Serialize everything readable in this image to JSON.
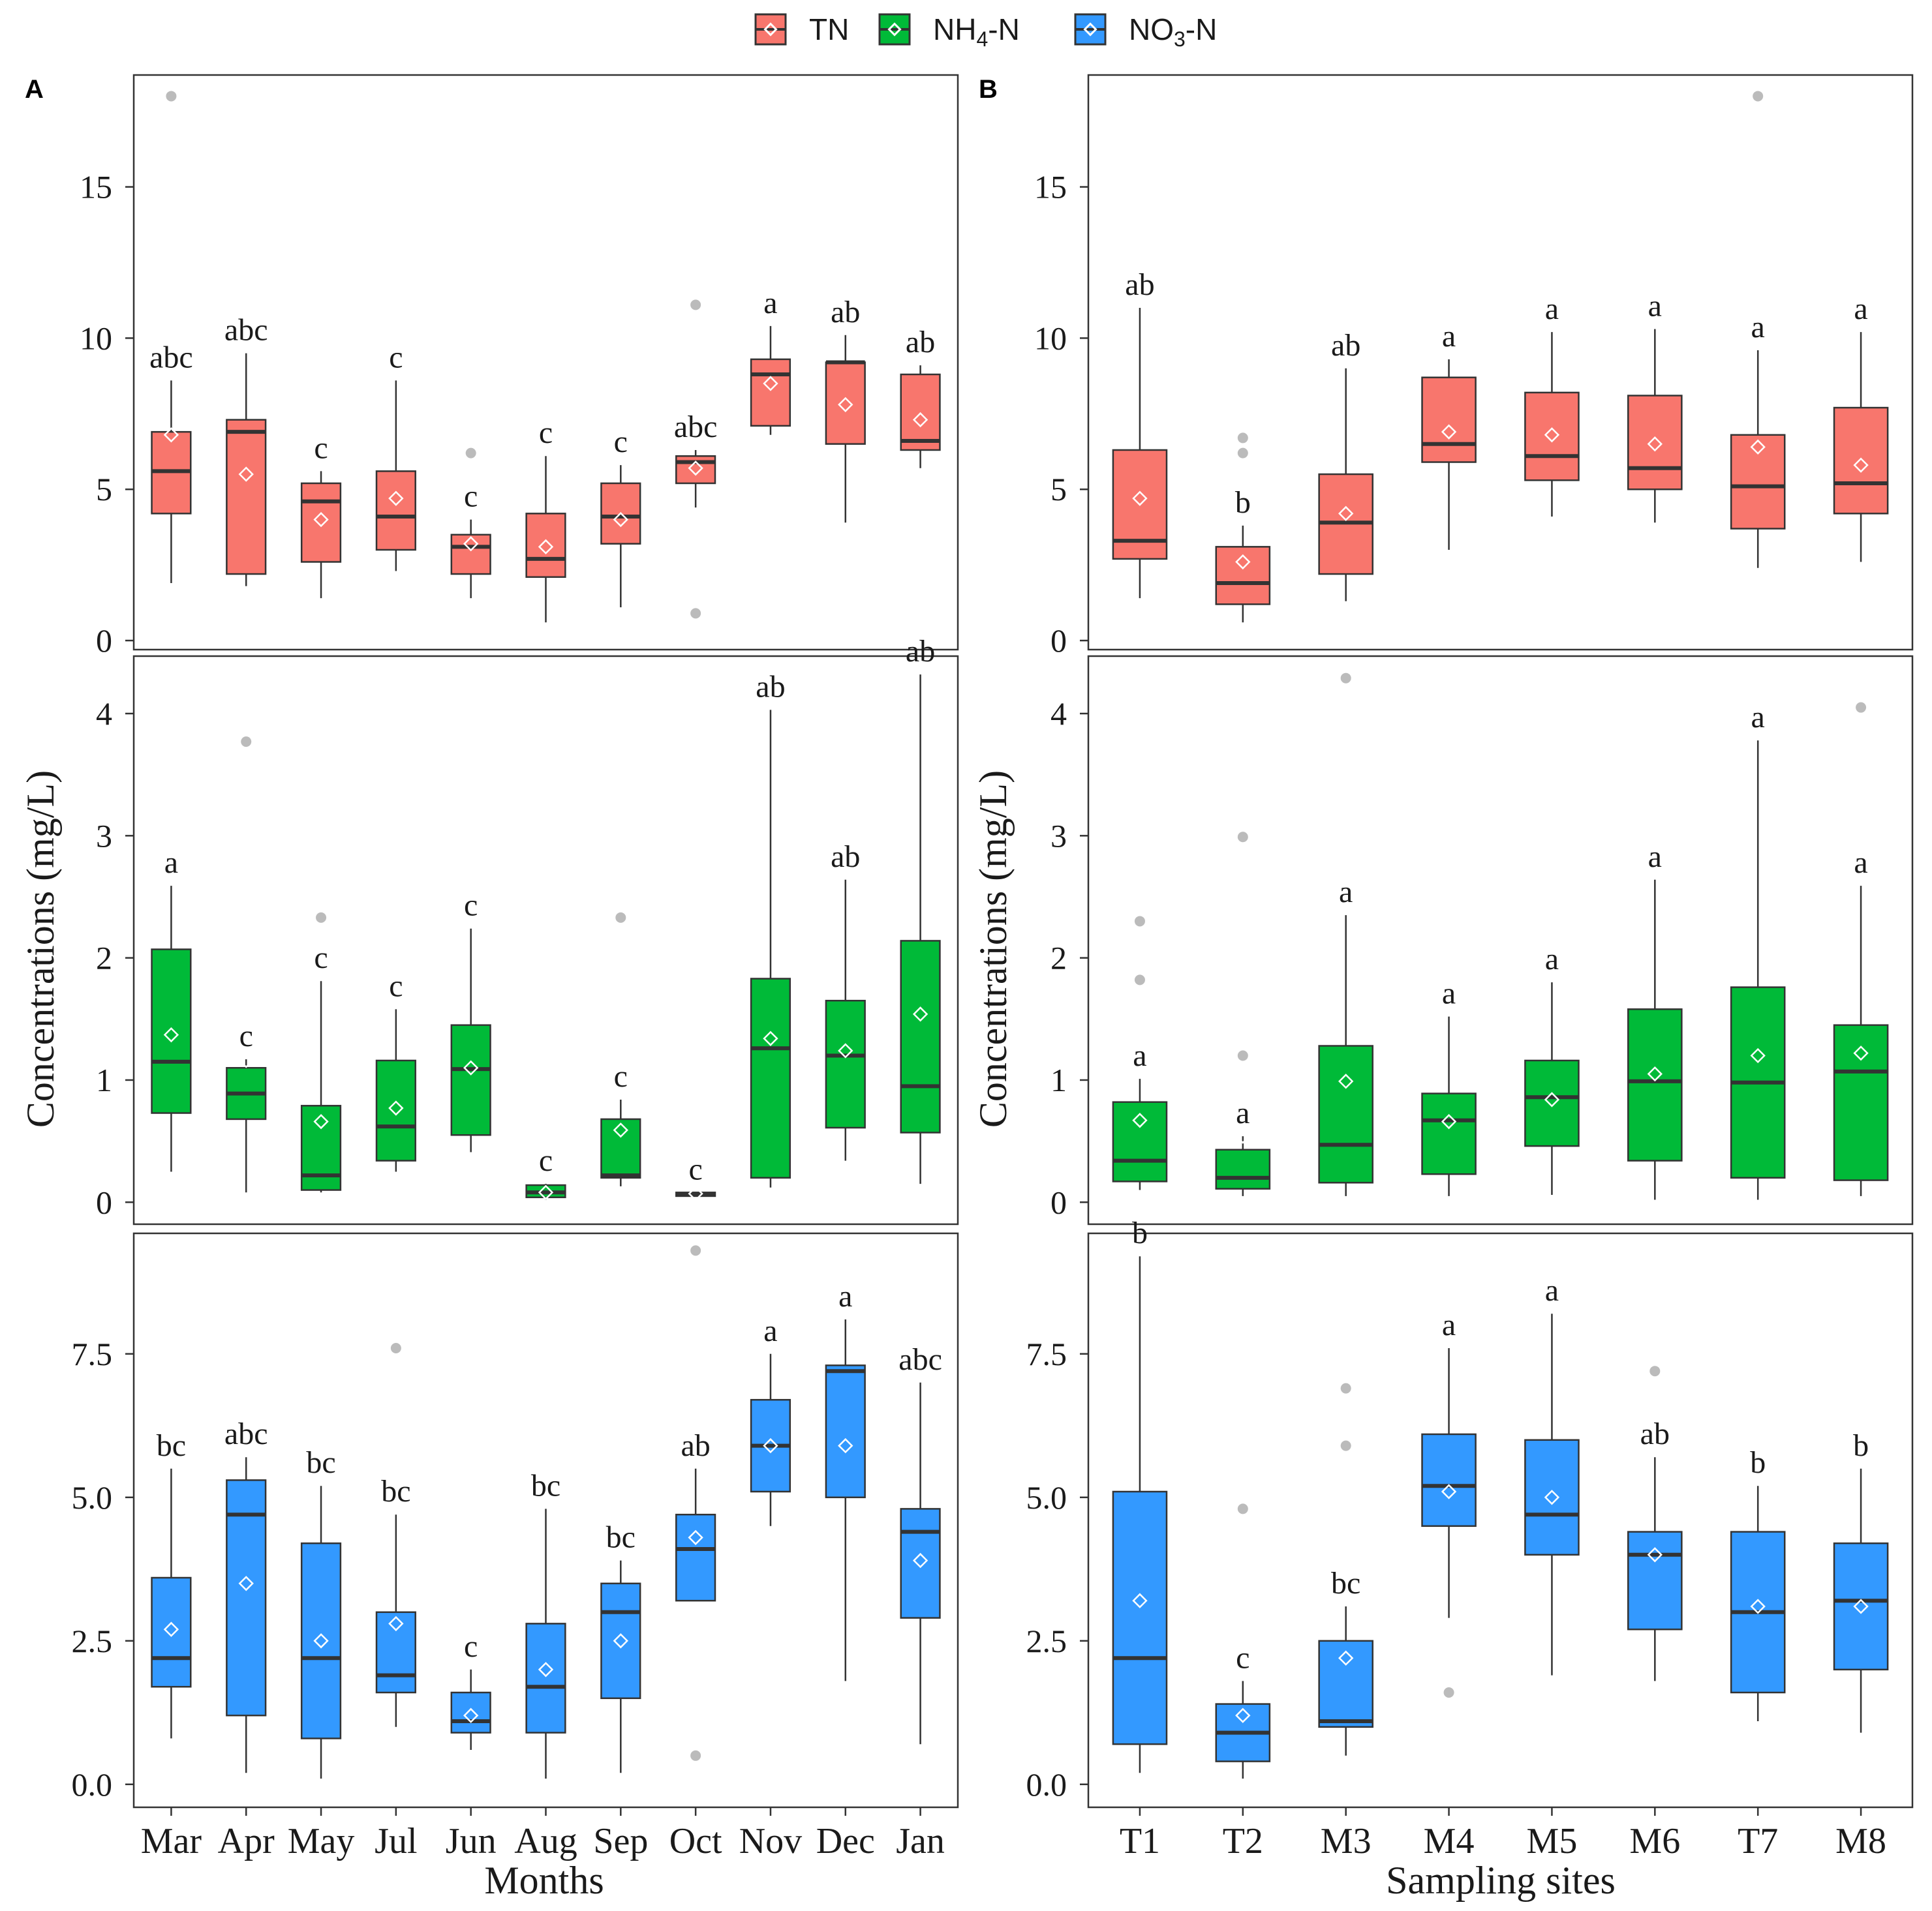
{
  "legend": [
    {
      "label": "TN",
      "color": "#F8766D"
    },
    {
      "label": "NH4-N",
      "color": "#00BA38"
    },
    {
      "label": "NO3-N",
      "color": "#3399FF"
    }
  ],
  "colors": {
    "TN": "#F8766D",
    "NH4": "#00BA38",
    "NO3": "#3399FF",
    "median": "#333333",
    "outlier": "#BBBBBB"
  },
  "y_label": "Concentrations (mg/L)",
  "chart_data": [
    {
      "type": "boxplot",
      "panel": "A",
      "xlabel": "Months",
      "categories": [
        "Mar",
        "Apr",
        "May",
        "Jul",
        "Jun",
        "Aug",
        "Sep",
        "Oct",
        "Nov",
        "Dec",
        "Jan"
      ],
      "facets": [
        {
          "variable": "TN",
          "ylim": [
            -0.3,
            18.7
          ],
          "yticks": [
            0,
            5,
            10,
            15
          ],
          "tick_labels": [
            "0",
            "5",
            "10",
            "15"
          ],
          "boxes": [
            {
              "min": 1.9,
              "q1": 4.2,
              "median": 5.6,
              "q3": 6.9,
              "max": 8.6,
              "mean": 6.8,
              "outliers": [
                18
              ],
              "letter": "abc"
            },
            {
              "min": 1.8,
              "q1": 2.2,
              "median": 6.9,
              "q3": 7.3,
              "max": 9.5,
              "mean": 5.5,
              "outliers": [],
              "letter": "abc"
            },
            {
              "min": 1.4,
              "q1": 2.6,
              "median": 4.6,
              "q3": 5.2,
              "max": 5.6,
              "mean": 4.0,
              "outliers": [],
              "letter": "c"
            },
            {
              "min": 2.3,
              "q1": 3.0,
              "median": 4.1,
              "q3": 5.6,
              "max": 8.6,
              "mean": 4.7,
              "outliers": [],
              "letter": "c"
            },
            {
              "min": 1.4,
              "q1": 2.2,
              "median": 3.1,
              "q3": 3.5,
              "max": 4.0,
              "mean": 3.2,
              "outliers": [
                6.2
              ],
              "letter": "c"
            },
            {
              "min": 0.6,
              "q1": 2.1,
              "median": 2.7,
              "q3": 4.2,
              "max": 6.1,
              "mean": 3.1,
              "outliers": [],
              "letter": "c"
            },
            {
              "min": 1.1,
              "q1": 3.2,
              "median": 4.1,
              "q3": 5.2,
              "max": 5.8,
              "mean": 4.0,
              "outliers": [],
              "letter": "c"
            },
            {
              "min": 4.4,
              "q1": 5.2,
              "median": 5.9,
              "q3": 6.1,
              "max": 6.3,
              "mean": 5.7,
              "outliers": [
                11.1,
                0.9
              ],
              "letter": "abc"
            },
            {
              "min": 6.8,
              "q1": 7.1,
              "median": 8.8,
              "q3": 9.3,
              "max": 10.4,
              "mean": 8.5,
              "outliers": [],
              "letter": "a"
            },
            {
              "min": 3.9,
              "q1": 6.5,
              "median": 9.2,
              "q3": 9.2,
              "max": 10.1,
              "mean": 7.8,
              "outliers": [],
              "letter": "ab"
            },
            {
              "min": 5.7,
              "q1": 6.3,
              "median": 6.6,
              "q3": 8.8,
              "max": 9.1,
              "mean": 7.3,
              "outliers": [],
              "letter": "ab"
            }
          ]
        },
        {
          "variable": "NH4-N",
          "ylim": [
            -0.18,
            4.47
          ],
          "yticks": [
            0,
            1,
            2,
            3,
            4
          ],
          "tick_labels": [
            "0",
            "1",
            "2",
            "3",
            "4"
          ],
          "boxes": [
            {
              "min": 0.25,
              "q1": 0.73,
              "median": 1.15,
              "q3": 2.07,
              "max": 2.59,
              "mean": 1.37,
              "outliers": [],
              "letter": "a"
            },
            {
              "min": 0.08,
              "q1": 0.68,
              "median": 0.89,
              "q3": 1.1,
              "max": 1.17,
              "mean": 1.16,
              "outliers": [
                3.77
              ],
              "letter": "c"
            },
            {
              "min": 0.08,
              "q1": 0.1,
              "median": 0.22,
              "q3": 0.79,
              "max": 1.81,
              "mean": 0.66,
              "outliers": [
                2.33
              ],
              "letter": "c"
            },
            {
              "min": 0.25,
              "q1": 0.34,
              "median": 0.62,
              "q3": 1.16,
              "max": 1.58,
              "mean": 0.77,
              "outliers": [],
              "letter": "c"
            },
            {
              "min": 0.41,
              "q1": 0.55,
              "median": 1.09,
              "q3": 1.45,
              "max": 2.24,
              "mean": 1.1,
              "outliers": [],
              "letter": "c"
            },
            {
              "min": 0.02,
              "q1": 0.04,
              "median": 0.08,
              "q3": 0.14,
              "max": 0.15,
              "mean": 0.08,
              "outliers": [],
              "letter": "c"
            },
            {
              "min": 0.13,
              "q1": 0.2,
              "median": 0.22,
              "q3": 0.68,
              "max": 0.84,
              "mean": 0.59,
              "outliers": [
                2.33
              ],
              "letter": "c"
            },
            {
              "min": 0.05,
              "q1": 0.05,
              "median": 0.06,
              "q3": 0.08,
              "max": 0.08,
              "mean": 0.07,
              "outliers": [],
              "letter": "c"
            },
            {
              "min": 0.12,
              "q1": 0.2,
              "median": 1.26,
              "q3": 1.83,
              "max": 4.03,
              "mean": 1.34,
              "outliers": [],
              "letter": "ab"
            },
            {
              "min": 0.34,
              "q1": 0.61,
              "median": 1.2,
              "q3": 1.65,
              "max": 2.64,
              "mean": 1.24,
              "outliers": [],
              "letter": "ab"
            },
            {
              "min": 0.15,
              "q1": 0.57,
              "median": 0.95,
              "q3": 2.14,
              "max": 4.32,
              "mean": 1.54,
              "outliers": [],
              "letter": "ab"
            }
          ]
        },
        {
          "variable": "NO3-N",
          "ylim": [
            -0.4,
            9.6
          ],
          "yticks": [
            0,
            2.5,
            5,
            7.5
          ],
          "tick_labels": [
            "0.0",
            "2.5",
            "5.0",
            "7.5"
          ],
          "boxes": [
            {
              "min": 0.8,
              "q1": 1.7,
              "median": 2.2,
              "q3": 3.6,
              "max": 5.5,
              "mean": 2.7,
              "outliers": [],
              "letter": "bc"
            },
            {
              "min": 0.2,
              "q1": 1.2,
              "median": 4.7,
              "q3": 5.3,
              "max": 5.7,
              "mean": 3.5,
              "outliers": [],
              "letter": "abc"
            },
            {
              "min": 0.1,
              "q1": 0.8,
              "median": 2.2,
              "q3": 4.2,
              "max": 5.2,
              "mean": 2.5,
              "outliers": [],
              "letter": "bc"
            },
            {
              "min": 1.0,
              "q1": 1.6,
              "median": 1.9,
              "q3": 3.0,
              "max": 4.7,
              "mean": 2.8,
              "outliers": [
                7.6
              ],
              "letter": "bc"
            },
            {
              "min": 0.6,
              "q1": 0.9,
              "median": 1.1,
              "q3": 1.6,
              "max": 2.0,
              "mean": 1.2,
              "outliers": [],
              "letter": "c"
            },
            {
              "min": 0.1,
              "q1": 0.9,
              "median": 1.7,
              "q3": 2.8,
              "max": 4.8,
              "mean": 2.0,
              "outliers": [],
              "letter": "bc"
            },
            {
              "min": 0.2,
              "q1": 1.5,
              "median": 3.0,
              "q3": 3.5,
              "max": 3.9,
              "mean": 2.5,
              "outliers": [],
              "letter": "bc"
            },
            {
              "min": 3.2,
              "q1": 3.2,
              "median": 4.1,
              "q3": 4.7,
              "max": 5.5,
              "mean": 4.3,
              "outliers": [
                9.3,
                0.5
              ],
              "letter": "ab"
            },
            {
              "min": 4.5,
              "q1": 5.1,
              "median": 5.9,
              "q3": 6.7,
              "max": 7.5,
              "mean": 5.9,
              "outliers": [],
              "letter": "a"
            },
            {
              "min": 1.8,
              "q1": 5.0,
              "median": 7.2,
              "q3": 7.3,
              "max": 8.1,
              "mean": 5.9,
              "outliers": [],
              "letter": "a"
            },
            {
              "min": 0.7,
              "q1": 2.9,
              "median": 4.4,
              "q3": 4.8,
              "max": 7.0,
              "mean": 3.9,
              "outliers": [],
              "letter": "abc"
            }
          ]
        }
      ]
    },
    {
      "type": "boxplot",
      "panel": "B",
      "xlabel": "Sampling sites",
      "categories": [
        "T1",
        "T2",
        "M3",
        "M4",
        "M5",
        "M6",
        "T7",
        "M8"
      ],
      "facets": [
        {
          "variable": "TN",
          "ylim": [
            -0.3,
            18.7
          ],
          "yticks": [
            0,
            5,
            10,
            15
          ],
          "tick_labels": [
            "0",
            "5",
            "10",
            "15"
          ],
          "boxes": [
            {
              "min": 1.4,
              "q1": 2.7,
              "median": 3.3,
              "q3": 6.3,
              "max": 11.0,
              "mean": 4.7,
              "outliers": [],
              "letter": "ab"
            },
            {
              "min": 0.6,
              "q1": 1.2,
              "median": 1.9,
              "q3": 3.1,
              "max": 3.8,
              "mean": 2.6,
              "outliers": [
                6.7,
                6.2
              ],
              "letter": "b"
            },
            {
              "min": 1.3,
              "q1": 2.2,
              "median": 3.9,
              "q3": 5.5,
              "max": 9.0,
              "mean": 4.2,
              "outliers": [],
              "letter": "ab"
            },
            {
              "min": 3.0,
              "q1": 5.9,
              "median": 6.5,
              "q3": 8.7,
              "max": 9.3,
              "mean": 6.9,
              "outliers": [],
              "letter": "a"
            },
            {
              "min": 4.1,
              "q1": 5.3,
              "median": 6.1,
              "q3": 8.2,
              "max": 10.2,
              "mean": 6.8,
              "outliers": [],
              "letter": "a"
            },
            {
              "min": 3.9,
              "q1": 5.0,
              "median": 5.7,
              "q3": 8.1,
              "max": 10.3,
              "mean": 6.5,
              "outliers": [],
              "letter": "a"
            },
            {
              "min": 2.4,
              "q1": 3.7,
              "median": 5.1,
              "q3": 6.8,
              "max": 9.6,
              "mean": 6.4,
              "outliers": [
                18
              ],
              "letter": "a"
            },
            {
              "min": 2.6,
              "q1": 4.2,
              "median": 5.2,
              "q3": 7.7,
              "max": 10.2,
              "mean": 5.8,
              "outliers": [],
              "letter": "a"
            }
          ]
        },
        {
          "variable": "NH4-N",
          "ylim": [
            -0.18,
            4.47
          ],
          "yticks": [
            0,
            1,
            2,
            3,
            4
          ],
          "tick_labels": [
            "0",
            "1",
            "2",
            "3",
            "4"
          ],
          "boxes": [
            {
              "min": 0.1,
              "q1": 0.17,
              "median": 0.34,
              "q3": 0.82,
              "max": 1.01,
              "mean": 0.67,
              "outliers": [
                2.3,
                1.82
              ],
              "letter": "a"
            },
            {
              "min": 0.05,
              "q1": 0.11,
              "median": 0.2,
              "q3": 0.43,
              "max": 0.54,
              "mean": 0.54,
              "outliers": [
                2.99,
                1.2
              ],
              "letter": "a"
            },
            {
              "min": 0.05,
              "q1": 0.16,
              "median": 0.47,
              "q3": 1.28,
              "max": 2.35,
              "mean": 0.99,
              "outliers": [
                4.29
              ],
              "letter": "a"
            },
            {
              "min": 0.05,
              "q1": 0.23,
              "median": 0.67,
              "q3": 0.89,
              "max": 1.52,
              "mean": 0.66,
              "outliers": [],
              "letter": "a"
            },
            {
              "min": 0.06,
              "q1": 0.46,
              "median": 0.86,
              "q3": 1.16,
              "max": 1.8,
              "mean": 0.84,
              "outliers": [],
              "letter": "a"
            },
            {
              "min": 0.02,
              "q1": 0.34,
              "median": 0.99,
              "q3": 1.58,
              "max": 2.64,
              "mean": 1.05,
              "outliers": [],
              "letter": "a"
            },
            {
              "min": 0.02,
              "q1": 0.2,
              "median": 0.98,
              "q3": 1.76,
              "max": 3.78,
              "mean": 1.2,
              "outliers": [],
              "letter": "a"
            },
            {
              "min": 0.05,
              "q1": 0.18,
              "median": 1.07,
              "q3": 1.45,
              "max": 2.59,
              "mean": 1.22,
              "outliers": [
                4.05
              ],
              "letter": "a"
            }
          ]
        },
        {
          "variable": "NO3-N",
          "ylim": [
            -0.4,
            9.6
          ],
          "yticks": [
            0,
            2.5,
            5,
            7.5
          ],
          "tick_labels": [
            "0.0",
            "2.5",
            "5.0",
            "7.5"
          ],
          "boxes": [
            {
              "min": 0.2,
              "q1": 0.7,
              "median": 2.2,
              "q3": 5.1,
              "max": 9.2,
              "mean": 3.2,
              "outliers": [],
              "letter": "b"
            },
            {
              "min": 0.1,
              "q1": 0.4,
              "median": 0.9,
              "q3": 1.4,
              "max": 1.8,
              "mean": 1.2,
              "outliers": [
                4.8
              ],
              "letter": "c"
            },
            {
              "min": 0.5,
              "q1": 1.0,
              "median": 1.1,
              "q3": 2.5,
              "max": 3.1,
              "mean": 2.2,
              "outliers": [
                6.9,
                5.9
              ],
              "letter": "bc"
            },
            {
              "min": 2.9,
              "q1": 4.5,
              "median": 5.2,
              "q3": 6.1,
              "max": 7.6,
              "mean": 5.1,
              "outliers": [
                1.6
              ],
              "letter": "a"
            },
            {
              "min": 1.9,
              "q1": 4.0,
              "median": 4.7,
              "q3": 6.0,
              "max": 8.2,
              "mean": 5.0,
              "outliers": [],
              "letter": "a"
            },
            {
              "min": 1.8,
              "q1": 2.7,
              "median": 4.0,
              "q3": 4.4,
              "max": 5.7,
              "mean": 4.0,
              "outliers": [
                7.2
              ],
              "letter": "ab"
            },
            {
              "min": 1.1,
              "q1": 1.6,
              "median": 3.0,
              "q3": 4.4,
              "max": 5.2,
              "mean": 3.1,
              "outliers": [],
              "letter": "b"
            },
            {
              "min": 0.9,
              "q1": 2.0,
              "median": 3.2,
              "q3": 4.2,
              "max": 5.5,
              "mean": 3.1,
              "outliers": [],
              "letter": "b"
            }
          ]
        }
      ]
    }
  ]
}
